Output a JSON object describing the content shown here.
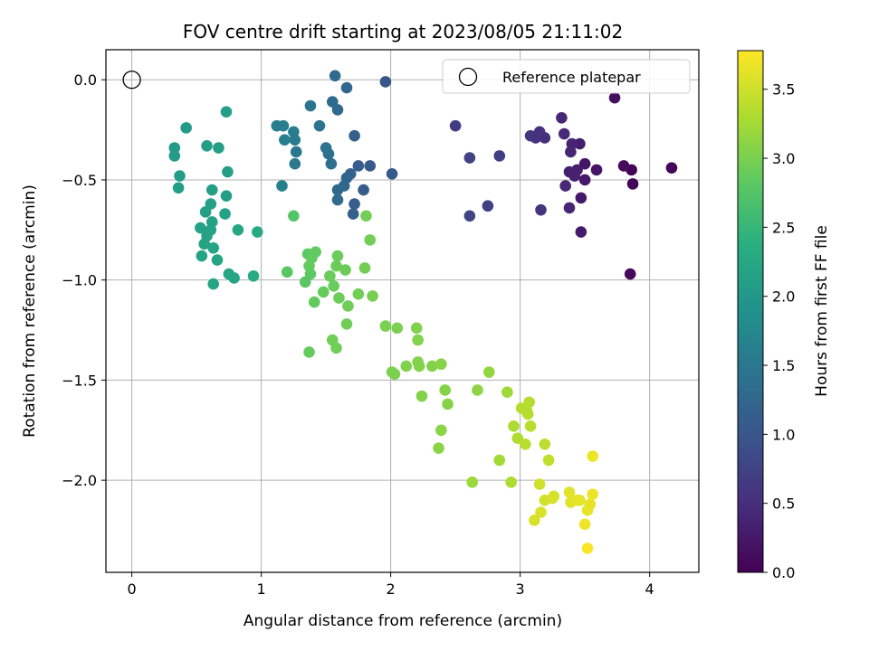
{
  "chart_data": {
    "type": "scatter",
    "title": "FOV centre drift starting at 2023/08/05 21:11:02",
    "xlabel": "Angular distance from reference (arcmin)",
    "ylabel": "Rotation from reference (arcmin)",
    "xlim": [
      -0.2,
      4.38
    ],
    "ylim": [
      -2.46,
      0.15
    ],
    "xticks": [
      0,
      1,
      2,
      3,
      4
    ],
    "xtick_labels": [
      "0",
      "1",
      "2",
      "3",
      "4"
    ],
    "yticks": [
      0.0,
      -0.5,
      -1.0,
      -1.5,
      -2.0
    ],
    "ytick_labels": [
      "0.0",
      "−0.5",
      "−1.0",
      "−1.5",
      "−2.0"
    ],
    "grid": true,
    "colorbar": {
      "label": "Hours from first FF file",
      "colormap": "viridis",
      "range": [
        0,
        3.78
      ],
      "ticks": [
        0.0,
        0.5,
        1.0,
        1.5,
        2.0,
        2.5,
        3.0,
        3.5
      ],
      "tick_labels": [
        "0.0",
        "0.5",
        "1.0",
        "1.5",
        "2.0",
        "2.5",
        "3.0",
        "3.5"
      ]
    },
    "legend": {
      "placement": "top-right",
      "entries": [
        {
          "label": "Reference platepar",
          "marker": "open-circle"
        }
      ]
    },
    "reference_point": {
      "x": 0,
      "y": 0
    },
    "points": [
      [
        4.17,
        -0.44,
        0.05
      ],
      [
        3.86,
        -0.45,
        0.03
      ],
      [
        3.87,
        -0.52,
        0.05
      ],
      [
        3.85,
        -0.97,
        0.08
      ],
      [
        3.8,
        -0.43,
        0.12
      ],
      [
        3.73,
        -0.09,
        0.15
      ],
      [
        3.59,
        -0.45,
        0.2
      ],
      [
        3.5,
        -0.42,
        0.22
      ],
      [
        3.5,
        -0.5,
        0.25
      ],
      [
        3.47,
        -0.59,
        0.25
      ],
      [
        3.47,
        -0.76,
        0.27
      ],
      [
        3.46,
        -0.32,
        0.3
      ],
      [
        3.44,
        -0.45,
        0.3
      ],
      [
        3.42,
        -0.48,
        0.35
      ],
      [
        3.38,
        -0.46,
        0.33
      ],
      [
        3.4,
        -0.32,
        0.38
      ],
      [
        3.39,
        -0.36,
        0.4
      ],
      [
        3.38,
        -0.64,
        0.4
      ],
      [
        3.35,
        -0.53,
        0.43
      ],
      [
        3.34,
        -0.27,
        0.45
      ],
      [
        3.32,
        -0.19,
        0.42
      ],
      [
        3.19,
        -0.29,
        0.5
      ],
      [
        3.15,
        -0.26,
        0.52
      ],
      [
        3.12,
        -0.29,
        0.55
      ],
      [
        3.08,
        -0.28,
        0.55
      ],
      [
        3.16,
        -0.65,
        0.57
      ],
      [
        2.84,
        -0.38,
        0.7
      ],
      [
        2.75,
        -0.63,
        0.72
      ],
      [
        2.61,
        -0.68,
        0.75
      ],
      [
        2.61,
        -0.39,
        0.75
      ],
      [
        2.5,
        -0.23,
        0.68
      ],
      [
        2.01,
        -0.47,
        1.05
      ],
      [
        1.96,
        -0.01,
        1.02
      ],
      [
        1.84,
        -0.43,
        1.05
      ],
      [
        1.79,
        -0.55,
        1.1
      ],
      [
        1.75,
        -0.43,
        1.12
      ],
      [
        1.72,
        -0.62,
        1.12
      ],
      [
        1.71,
        -0.67,
        1.15
      ],
      [
        1.72,
        -0.28,
        1.15
      ],
      [
        1.69,
        -0.47,
        1.2
      ],
      [
        1.66,
        -0.49,
        1.22
      ],
      [
        1.64,
        -0.53,
        1.25
      ],
      [
        1.66,
        -0.04,
        1.25
      ],
      [
        1.59,
        -0.55,
        1.28
      ],
      [
        1.59,
        -0.6,
        1.3
      ],
      [
        1.59,
        -0.15,
        1.3
      ],
      [
        1.55,
        -0.11,
        1.32
      ],
      [
        1.57,
        0.02,
        1.32
      ],
      [
        1.54,
        -0.42,
        1.38
      ],
      [
        1.52,
        -0.37,
        1.4
      ],
      [
        1.5,
        -0.34,
        1.42
      ],
      [
        1.45,
        -0.23,
        1.45
      ],
      [
        1.38,
        -0.13,
        1.45
      ],
      [
        1.27,
        -0.36,
        1.5
      ],
      [
        1.26,
        -0.42,
        1.52
      ],
      [
        1.26,
        -0.3,
        1.55
      ],
      [
        1.25,
        -0.26,
        1.58
      ],
      [
        1.18,
        -0.3,
        1.6
      ],
      [
        1.17,
        -0.23,
        1.62
      ],
      [
        1.12,
        -0.23,
        1.62
      ],
      [
        1.16,
        -0.53,
        1.65
      ],
      [
        0.33,
        -0.34,
        2.05
      ],
      [
        0.33,
        -0.38,
        2.05
      ],
      [
        0.42,
        -0.24,
        2.05
      ],
      [
        0.37,
        -0.48,
        2.08
      ],
      [
        0.36,
        -0.54,
        2.08
      ],
      [
        0.58,
        -0.33,
        2.1
      ],
      [
        0.67,
        -0.34,
        2.1
      ],
      [
        0.73,
        -0.16,
        2.1
      ],
      [
        0.74,
        -0.46,
        2.12
      ],
      [
        0.62,
        -0.55,
        2.12
      ],
      [
        0.73,
        -0.58,
        2.12
      ],
      [
        0.61,
        -0.62,
        2.14
      ],
      [
        0.57,
        -0.66,
        2.14
      ],
      [
        0.72,
        -0.67,
        2.15
      ],
      [
        0.62,
        -0.71,
        2.15
      ],
      [
        0.53,
        -0.74,
        2.16
      ],
      [
        0.61,
        -0.75,
        2.16
      ],
      [
        0.58,
        -0.78,
        2.16
      ],
      [
        0.56,
        -0.82,
        2.18
      ],
      [
        0.63,
        -0.84,
        2.18
      ],
      [
        0.54,
        -0.88,
        2.18
      ],
      [
        0.66,
        -0.9,
        2.2
      ],
      [
        0.75,
        -0.97,
        2.2
      ],
      [
        0.79,
        -0.99,
        2.22
      ],
      [
        0.63,
        -1.02,
        2.22
      ],
      [
        0.82,
        -0.75,
        2.25
      ],
      [
        0.97,
        -0.76,
        2.3
      ],
      [
        0.94,
        -0.98,
        2.33
      ],
      [
        1.25,
        -0.68,
        2.75
      ],
      [
        1.2,
        -0.96,
        2.78
      ],
      [
        1.34,
        -1.01,
        2.8
      ],
      [
        1.38,
        -0.97,
        2.82
      ],
      [
        1.36,
        -0.87,
        2.82
      ],
      [
        1.42,
        -0.86,
        2.85
      ],
      [
        1.39,
        -0.89,
        2.85
      ],
      [
        1.37,
        -0.93,
        2.86
      ],
      [
        1.41,
        -1.11,
        2.86
      ],
      [
        1.37,
        -1.36,
        2.88
      ],
      [
        1.48,
        -1.06,
        2.88
      ],
      [
        1.53,
        -0.98,
        2.9
      ],
      [
        1.56,
        -1.03,
        2.9
      ],
      [
        1.59,
        -0.88,
        2.9
      ],
      [
        1.58,
        -0.93,
        2.92
      ],
      [
        1.6,
        -1.09,
        2.92
      ],
      [
        1.65,
        -0.95,
        2.92
      ],
      [
        1.67,
        -1.13,
        2.94
      ],
      [
        1.66,
        -1.22,
        2.94
      ],
      [
        1.55,
        -1.3,
        2.95
      ],
      [
        1.58,
        -1.34,
        2.95
      ],
      [
        1.75,
        -1.07,
        2.95
      ],
      [
        1.8,
        -0.94,
        2.96
      ],
      [
        1.81,
        -0.68,
        2.96
      ],
      [
        1.84,
        -0.8,
        2.96
      ],
      [
        1.86,
        -1.08,
        2.98
      ],
      [
        1.96,
        -1.23,
        3.0
      ],
      [
        2.05,
        -1.24,
        3.0
      ],
      [
        2.01,
        -1.46,
        3.02
      ],
      [
        2.03,
        -1.47,
        3.02
      ],
      [
        2.12,
        -1.43,
        3.04
      ],
      [
        2.2,
        -1.24,
        3.04
      ],
      [
        2.21,
        -1.3,
        3.05
      ],
      [
        2.21,
        -1.41,
        3.05
      ],
      [
        2.22,
        -1.43,
        3.05
      ],
      [
        2.24,
        -1.58,
        3.06
      ],
      [
        2.32,
        -1.43,
        3.06
      ],
      [
        2.39,
        -1.42,
        3.08
      ],
      [
        2.42,
        -1.55,
        3.08
      ],
      [
        2.44,
        -1.62,
        3.08
      ],
      [
        2.39,
        -1.75,
        3.1
      ],
      [
        2.37,
        -1.84,
        3.1
      ],
      [
        2.67,
        -1.55,
        3.12
      ],
      [
        2.76,
        -1.46,
        3.14
      ],
      [
        2.63,
        -2.01,
        3.2
      ],
      [
        2.84,
        -1.9,
        3.25
      ],
      [
        2.9,
        -1.56,
        3.22
      ],
      [
        2.93,
        -2.01,
        3.3
      ],
      [
        2.95,
        -1.73,
        3.3
      ],
      [
        2.98,
        -1.79,
        3.32
      ],
      [
        3.01,
        -1.64,
        3.35
      ],
      [
        3.05,
        -1.65,
        3.35
      ],
      [
        3.07,
        -1.61,
        3.36
      ],
      [
        3.06,
        -1.67,
        3.36
      ],
      [
        3.08,
        -1.73,
        3.38
      ],
      [
        3.04,
        -1.82,
        3.38
      ],
      [
        3.19,
        -1.82,
        3.4
      ],
      [
        3.22,
        -1.9,
        3.42
      ],
      [
        3.15,
        -2.02,
        3.5
      ],
      [
        3.19,
        -2.1,
        3.52
      ],
      [
        3.25,
        -2.09,
        3.54
      ],
      [
        3.26,
        -2.08,
        3.55
      ],
      [
        3.11,
        -2.2,
        3.55
      ],
      [
        3.16,
        -2.16,
        3.56
      ],
      [
        3.38,
        -2.06,
        3.6
      ],
      [
        3.39,
        -2.11,
        3.62
      ],
      [
        3.44,
        -2.1,
        3.62
      ],
      [
        3.46,
        -2.1,
        3.64
      ],
      [
        3.52,
        -2.15,
        3.65
      ],
      [
        3.54,
        -2.12,
        3.65
      ],
      [
        3.56,
        -2.07,
        3.68
      ],
      [
        3.56,
        -1.88,
        3.68
      ],
      [
        3.5,
        -2.22,
        3.7
      ],
      [
        3.52,
        -2.34,
        3.75
      ]
    ]
  }
}
